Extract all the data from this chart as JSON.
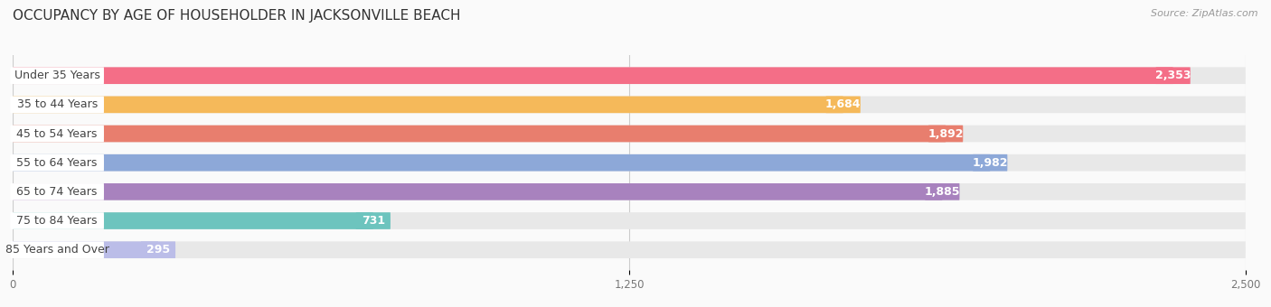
{
  "title": "OCCUPANCY BY AGE OF HOUSEHOLDER IN JACKSONVILLE BEACH",
  "source": "Source: ZipAtlas.com",
  "categories": [
    "Under 35 Years",
    "35 to 44 Years",
    "45 to 54 Years",
    "55 to 64 Years",
    "65 to 74 Years",
    "75 to 84 Years",
    "85 Years and Over"
  ],
  "values": [
    2353,
    1684,
    1892,
    1982,
    1885,
    731,
    295
  ],
  "bar_colors": [
    "#F46E87",
    "#F5B95A",
    "#E87E6E",
    "#8DA8D8",
    "#A882BE",
    "#6DC4BE",
    "#BBBDE8"
  ],
  "bar_bg_color": "#E8E8E8",
  "xlim": [
    0,
    2500
  ],
  "xticks": [
    0,
    1250,
    2500
  ],
  "xtick_labels": [
    "0",
    "1,250",
    "2,500"
  ],
  "title_fontsize": 11,
  "label_fontsize": 9,
  "value_fontsize": 9,
  "bg_color": "#FAFAFA",
  "bar_height": 0.58,
  "label_bubble_color": "#FFFFFF",
  "label_text_color": "#444444"
}
